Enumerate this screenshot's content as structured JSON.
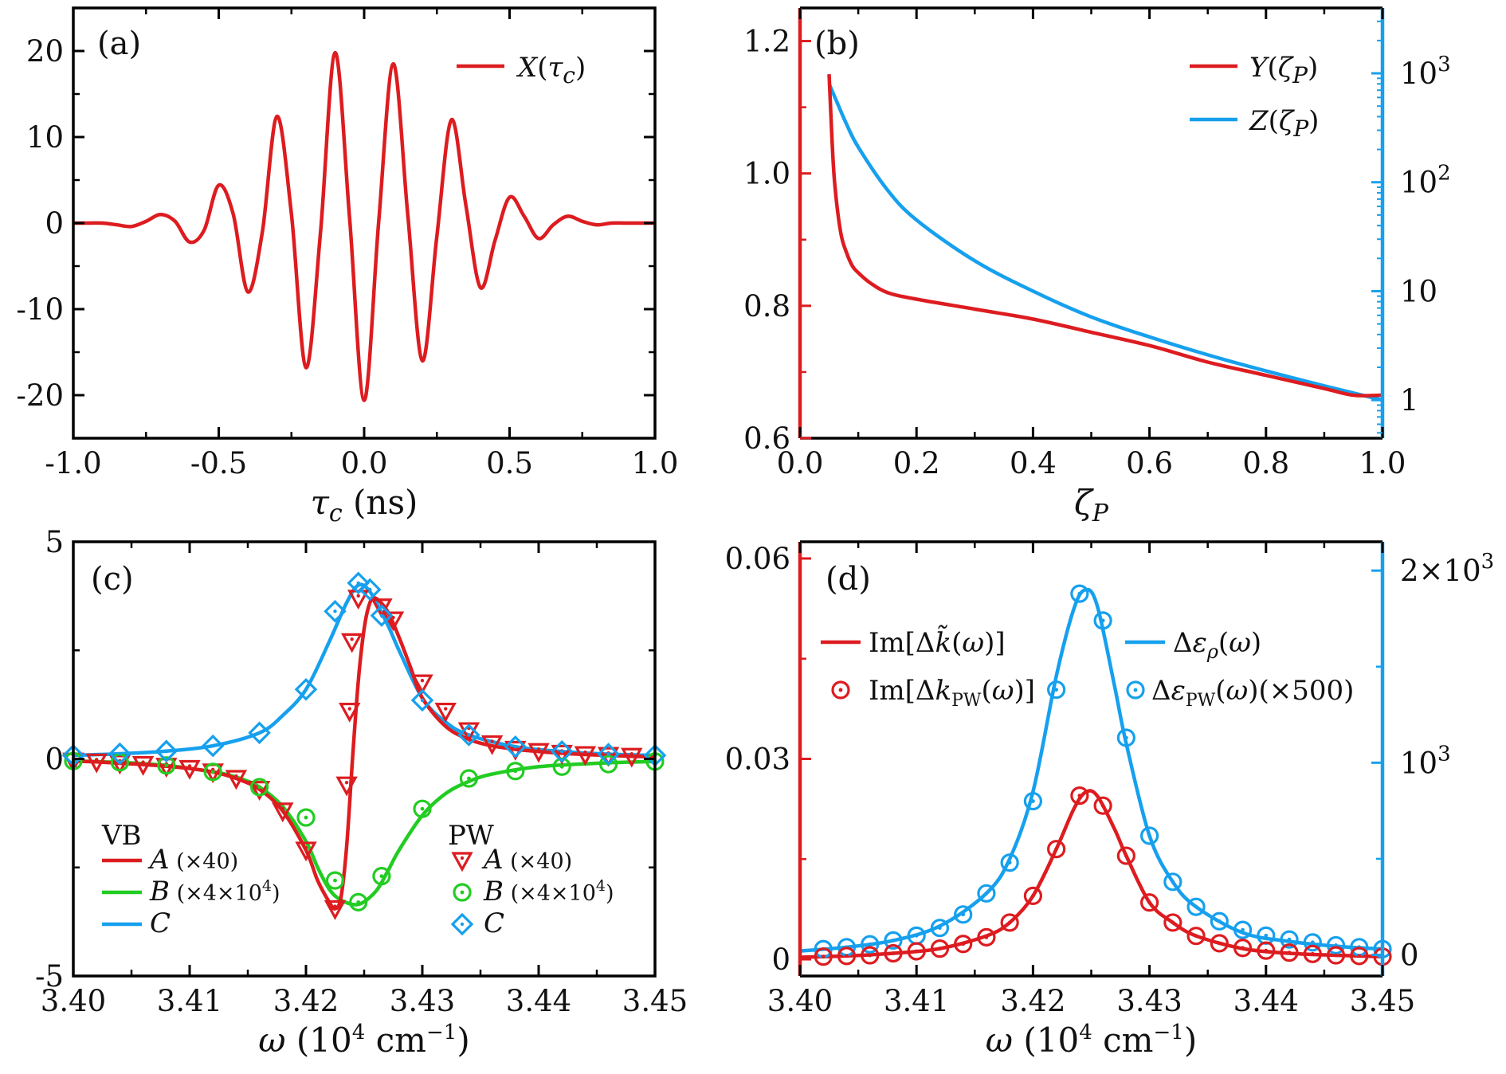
{
  "colors": {
    "red": "#dd1c20",
    "blue": "#16a0ee",
    "green": "#22cc22",
    "axis": "#000000"
  },
  "chart_data": [
    {
      "panel": "(a)",
      "type": "line",
      "xlabel": "τ_c (ns)",
      "xlim": [
        -1.0,
        1.0
      ],
      "ylim": [
        -25,
        25
      ],
      "xticks": [
        "-1.0",
        "-0.5",
        "0.0",
        "0.5",
        "1.0"
      ],
      "yticks": [
        "-20",
        "-10",
        "0",
        "10",
        "20"
      ],
      "legend": [
        "X(τ_c)"
      ],
      "series": [
        {
          "name": "X(τ_c)",
          "color": "red",
          "x": [
            -1.0,
            -0.95,
            -0.9,
            -0.85,
            -0.8,
            -0.75,
            -0.7,
            -0.65,
            -0.6,
            -0.55,
            -0.5,
            -0.45,
            -0.4,
            -0.35,
            -0.3,
            -0.25,
            -0.2,
            -0.15,
            -0.1,
            -0.05,
            0.0,
            0.05,
            0.1,
            0.15,
            0.2,
            0.25,
            0.3,
            0.35,
            0.4,
            0.45,
            0.5,
            0.55,
            0.6,
            0.65,
            0.7,
            0.75,
            0.8,
            0.85,
            0.9,
            0.95,
            1.0
          ],
          "y": [
            0,
            0,
            0,
            -0.2,
            -0.4,
            0.2,
            1.0,
            0.2,
            -2.2,
            -0.8,
            4.4,
            1.0,
            -8.0,
            -1.0,
            12.4,
            1.0,
            -16.8,
            -1.0,
            19.8,
            0.5,
            -20.6,
            0.2,
            18.5,
            1.0,
            -16.0,
            -1.5,
            12.0,
            2.0,
            -7.5,
            -2.0,
            3.0,
            0.8,
            -1.8,
            -0.2,
            0.8,
            0.2,
            -0.2,
            0,
            0,
            0,
            0
          ]
        }
      ]
    },
    {
      "panel": "(b)",
      "type": "line",
      "xlabel": "ζ_P",
      "xlim": [
        0.0,
        1.0
      ],
      "ylim_left": [
        0.6,
        1.25
      ],
      "ylim_right_log10": [
        -0.35,
        3.6
      ],
      "xticks": [
        "0.0",
        "0.2",
        "0.4",
        "0.6",
        "0.8",
        "1.0"
      ],
      "yticks_left": [
        "0.6",
        "0.8",
        "1.0",
        "1.2"
      ],
      "yticks_right": [
        "1",
        "10",
        "10^2",
        "10^3"
      ],
      "legend": [
        "Y(ζ_P)",
        "Z(ζ_P)"
      ],
      "series": [
        {
          "name": "Y(ζ_P)",
          "color": "red",
          "axis": "left",
          "x": [
            0.05,
            0.055,
            0.06,
            0.07,
            0.08,
            0.09,
            0.1,
            0.12,
            0.15,
            0.2,
            0.3,
            0.4,
            0.5,
            0.6,
            0.7,
            0.8,
            0.9,
            0.95,
            1.0
          ],
          "y": [
            1.15,
            1.05,
            0.98,
            0.91,
            0.88,
            0.86,
            0.85,
            0.835,
            0.82,
            0.81,
            0.795,
            0.78,
            0.76,
            0.74,
            0.715,
            0.695,
            0.675,
            0.665,
            0.665
          ]
        },
        {
          "name": "Z(ζ_P)",
          "color": "blue",
          "axis": "right",
          "x": [
            0.05,
            0.06,
            0.08,
            0.1,
            0.15,
            0.2,
            0.3,
            0.4,
            0.5,
            0.6,
            0.7,
            0.8,
            0.9,
            1.0
          ],
          "y": [
            800,
            600,
            340,
            210,
            85,
            45,
            19,
            10,
            5.8,
            3.8,
            2.6,
            1.85,
            1.35,
            1.0
          ]
        }
      ]
    },
    {
      "panel": "(c)",
      "type": "line+scatter",
      "xlabel": "ω (10^4 cm^-1)",
      "xlim": [
        3.4,
        3.45
      ],
      "ylim": [
        -5,
        5
      ],
      "xticks": [
        "3.40",
        "3.41",
        "3.42",
        "3.43",
        "3.44",
        "3.45"
      ],
      "yticks": [
        "-5",
        "0",
        "5"
      ],
      "legend_vb_title": "VB",
      "legend_pw_title": "PW",
      "legend": [
        "A (×40)",
        "B (×4×10^4)",
        "C"
      ],
      "series": [
        {
          "name": "A (×40)",
          "color": "red",
          "group": "VB",
          "marker": "triangle-down",
          "x": [
            3.4,
            3.402,
            3.404,
            3.406,
            3.408,
            3.41,
            3.412,
            3.414,
            3.416,
            3.418,
            3.42,
            3.421,
            3.422,
            3.4225,
            3.423,
            3.4235,
            3.424,
            3.4245,
            3.425,
            3.4255,
            3.426,
            3.427,
            3.428,
            3.429,
            3.43,
            3.432,
            3.434,
            3.436,
            3.438,
            3.44,
            3.442,
            3.444,
            3.446,
            3.448,
            3.45
          ],
          "y": [
            -0.05,
            -0.07,
            -0.1,
            -0.13,
            -0.17,
            -0.22,
            -0.3,
            -0.45,
            -0.7,
            -1.2,
            -2.1,
            -2.8,
            -3.3,
            -3.45,
            -3.2,
            -2.0,
            0.0,
            1.8,
            3.0,
            3.6,
            3.7,
            3.4,
            2.8,
            2.1,
            1.4,
            0.75,
            0.45,
            0.3,
            0.22,
            0.17,
            0.13,
            0.1,
            0.08,
            0.06,
            0.05
          ]
        },
        {
          "name": "B (×4×10^4)",
          "color": "green",
          "group": "VB",
          "marker": "circle",
          "x": [
            3.4,
            3.404,
            3.408,
            3.412,
            3.414,
            3.416,
            3.418,
            3.42,
            3.421,
            3.422,
            3.423,
            3.4245,
            3.426,
            3.427,
            3.428,
            3.43,
            3.432,
            3.434,
            3.436,
            3.44,
            3.445,
            3.45
          ],
          "y": [
            -0.05,
            -0.08,
            -0.15,
            -0.3,
            -0.42,
            -0.65,
            -1.1,
            -1.9,
            -2.5,
            -3.0,
            -3.25,
            -3.35,
            -3.05,
            -2.6,
            -2.1,
            -1.3,
            -0.8,
            -0.52,
            -0.35,
            -0.18,
            -0.1,
            -0.06
          ]
        },
        {
          "name": "C",
          "color": "blue",
          "group": "VB",
          "marker": "diamond",
          "x": [
            3.4,
            3.404,
            3.408,
            3.412,
            3.416,
            3.418,
            3.42,
            3.422,
            3.4235,
            3.4245,
            3.4255,
            3.427,
            3.428,
            3.43,
            3.432,
            3.434,
            3.438,
            3.442,
            3.446,
            3.45
          ],
          "y": [
            0.08,
            0.12,
            0.18,
            0.3,
            0.6,
            1.0,
            1.6,
            2.7,
            3.6,
            4.0,
            3.85,
            3.1,
            2.5,
            1.4,
            0.85,
            0.55,
            0.28,
            0.17,
            0.11,
            0.08
          ]
        }
      ],
      "markers": [
        {
          "name": "A (×40)",
          "x": [
            3.4,
            3.402,
            3.404,
            3.406,
            3.408,
            3.41,
            3.412,
            3.414,
            3.416,
            3.418,
            3.42,
            3.4225,
            3.4235,
            3.42375,
            3.42395,
            3.4245,
            3.4265,
            3.4275,
            3.43,
            3.432,
            3.434,
            3.436,
            3.438,
            3.44,
            3.442,
            3.444,
            3.446,
            3.448
          ],
          "y": [
            -0.05,
            -0.07,
            -0.1,
            -0.13,
            -0.17,
            -0.22,
            -0.3,
            -0.45,
            -0.7,
            -1.2,
            -2.1,
            -3.45,
            -0.6,
            1.1,
            2.7,
            3.7,
            3.5,
            3.2,
            1.75,
            1.1,
            0.65,
            0.35,
            0.22,
            0.17,
            0.13,
            0.1,
            0.08,
            0.06
          ]
        },
        {
          "name": "B (×4×10^4)",
          "x": [
            3.4,
            3.404,
            3.408,
            3.412,
            3.416,
            3.42,
            3.4225,
            3.4245,
            3.4265,
            3.43,
            3.434,
            3.438,
            3.442,
            3.446,
            3.45
          ],
          "y": [
            -0.05,
            -0.08,
            -0.15,
            -0.3,
            -0.65,
            -1.35,
            -2.8,
            -3.3,
            -2.7,
            -1.15,
            -0.45,
            -0.28,
            -0.18,
            -0.12,
            -0.06
          ]
        },
        {
          "name": "C",
          "x": [
            3.4,
            3.404,
            3.408,
            3.412,
            3.416,
            3.42,
            3.4225,
            3.4245,
            3.4255,
            3.4265,
            3.43,
            3.434,
            3.438,
            3.442,
            3.446,
            3.45
          ],
          "y": [
            0.08,
            0.12,
            0.18,
            0.3,
            0.6,
            1.6,
            3.4,
            4.05,
            3.9,
            3.3,
            1.35,
            0.55,
            0.28,
            0.17,
            0.11,
            0.08
          ]
        }
      ]
    },
    {
      "panel": "(d)",
      "type": "line+scatter",
      "xlabel": "ω (10^4 cm^-1)",
      "xlim": [
        3.4,
        3.45
      ],
      "ylim_left": [
        -0.0025,
        0.0625
      ],
      "ylim_right": [
        -110,
        2150
      ],
      "xticks": [
        "3.40",
        "3.41",
        "3.42",
        "3.43",
        "3.44",
        "3.45"
      ],
      "yticks_left": [
        "0",
        "0.03",
        "0.06"
      ],
      "yticks_right": [
        "0",
        "10^3",
        "2×10^3"
      ],
      "legend": [
        "Im[Δk̃(ω)]",
        "Im[Δk_PW(ω)]",
        "Δε_ρ(ω)",
        "Δε_PW(ω)(×500)"
      ],
      "series": [
        {
          "name": "Im[Δk̃(ω)]",
          "color": "red",
          "axis": "left",
          "x": [
            3.4,
            3.404,
            3.408,
            3.412,
            3.416,
            3.418,
            3.42,
            3.422,
            3.4235,
            3.4245,
            3.4255,
            3.427,
            3.428,
            3.43,
            3.432,
            3.434,
            3.438,
            3.442,
            3.446,
            3.45
          ],
          "y": [
            0.0003,
            0.0005,
            0.0009,
            0.0016,
            0.0035,
            0.0055,
            0.0095,
            0.0165,
            0.0225,
            0.025,
            0.0245,
            0.0195,
            0.0155,
            0.0085,
            0.0055,
            0.0035,
            0.0016,
            0.0009,
            0.0006,
            0.0004
          ]
        },
        {
          "name": "Δε_ρ(ω)",
          "color": "blue",
          "axis": "right",
          "x": [
            3.4,
            3.404,
            3.408,
            3.412,
            3.416,
            3.418,
            3.42,
            3.422,
            3.4235,
            3.4245,
            3.4255,
            3.427,
            3.428,
            3.43,
            3.432,
            3.434,
            3.438,
            3.442,
            3.446,
            3.45
          ],
          "y": [
            20,
            40,
            75,
            150,
            320,
            500,
            850,
            1450,
            1800,
            1900,
            1820,
            1400,
            1100,
            620,
            380,
            250,
            115,
            70,
            45,
            30
          ]
        }
      ],
      "markers": [
        {
          "name": "Im[Δk_PW(ω)]",
          "x": [
            3.402,
            3.404,
            3.406,
            3.408,
            3.41,
            3.412,
            3.414,
            3.416,
            3.418,
            3.42,
            3.422,
            3.424,
            3.426,
            3.428,
            3.43,
            3.432,
            3.434,
            3.436,
            3.438,
            3.44,
            3.442,
            3.444,
            3.446,
            3.448,
            3.45
          ],
          "y": [
            0.0004,
            0.0005,
            0.0006,
            0.0009,
            0.0012,
            0.0016,
            0.0023,
            0.0033,
            0.0055,
            0.0095,
            0.0165,
            0.0245,
            0.023,
            0.0155,
            0.0085,
            0.0055,
            0.0035,
            0.0024,
            0.0017,
            0.0013,
            0.001,
            0.0008,
            0.0006,
            0.0005,
            0.0004
          ]
        },
        {
          "name": "Δε_PW(ω)(×500)",
          "x": [
            3.402,
            3.404,
            3.406,
            3.408,
            3.41,
            3.412,
            3.414,
            3.416,
            3.418,
            3.42,
            3.422,
            3.424,
            3.426,
            3.428,
            3.43,
            3.432,
            3.434,
            3.436,
            3.438,
            3.44,
            3.442,
            3.444,
            3.446,
            3.448,
            3.45
          ],
          "y": [
            30,
            40,
            55,
            75,
            100,
            140,
            210,
            320,
            480,
            800,
            1380,
            1880,
            1740,
            1130,
            620,
            380,
            250,
            175,
            130,
            100,
            80,
            65,
            50,
            40,
            30
          ]
        }
      ]
    }
  ]
}
